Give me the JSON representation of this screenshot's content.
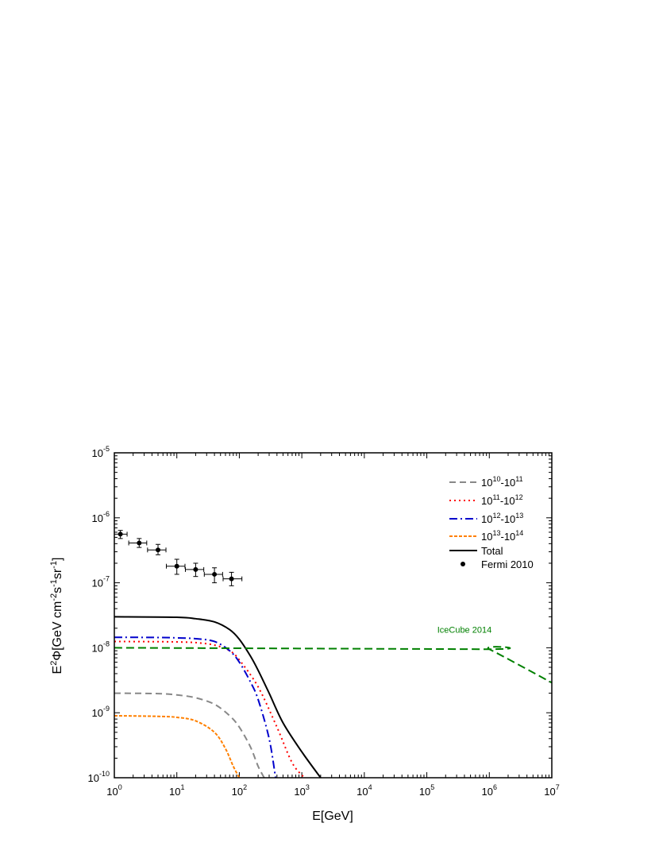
{
  "chart_data": {
    "type": "line",
    "x_scale": "log",
    "y_scale": "log",
    "xlim": [
      1,
      10000000
    ],
    "ylim": [
      1e-10,
      1e-05
    ],
    "xlabel": "E[GeV]",
    "ylabel": "E²Φ[GeV cm⁻²s⁻¹sr⁻¹]",
    "ylabel_parts": {
      "E": "E",
      "E_sup": "2",
      "phi": "Φ[GeV cm",
      "cm_sup": "-2",
      "s": "s",
      "s_sup": "-1",
      "sr": "sr",
      "sr_sup": "-1",
      "close": "]"
    },
    "x_ticks": [
      {
        "value": 1,
        "base": "10",
        "exp": "0"
      },
      {
        "value": 10,
        "base": "10",
        "exp": "1"
      },
      {
        "value": 100,
        "base": "10",
        "exp": "2"
      },
      {
        "value": 1000,
        "base": "10",
        "exp": "3"
      },
      {
        "value": 10000,
        "base": "10",
        "exp": "4"
      },
      {
        "value": 100000,
        "base": "10",
        "exp": "5"
      },
      {
        "value": 1000000,
        "base": "10",
        "exp": "6"
      },
      {
        "value": 10000000,
        "base": "10",
        "exp": "7"
      }
    ],
    "y_ticks": [
      {
        "value": 1e-10,
        "base": "10",
        "exp": "-10"
      },
      {
        "value": 1e-09,
        "base": "10",
        "exp": "-9"
      },
      {
        "value": 1e-08,
        "base": "10",
        "exp": "-8"
      },
      {
        "value": 1e-07,
        "base": "10",
        "exp": "-7"
      },
      {
        "value": 1e-06,
        "base": "10",
        "exp": "-6"
      },
      {
        "value": 1e-05,
        "base": "10",
        "exp": "-5"
      }
    ],
    "legend_position": "top-right",
    "series": [
      {
        "name": "10¹⁰-10¹¹",
        "label_parts": {
          "a": "10",
          "a_exp": "10",
          "sep": "-",
          "b": "10",
          "b_exp": "11"
        },
        "color": "#888888",
        "dash": "8,5",
        "width": 2,
        "points": [
          [
            1,
            2e-09
          ],
          [
            5,
            1.97e-09
          ],
          [
            10,
            1.88e-09
          ],
          [
            20,
            1.7e-09
          ],
          [
            40,
            1.35e-09
          ],
          [
            70,
            9e-10
          ],
          [
            100,
            6e-10
          ],
          [
            150,
            3e-10
          ],
          [
            200,
            1.5e-10
          ],
          [
            250,
            1e-10
          ]
        ]
      },
      {
        "name": "10¹¹-10¹²",
        "label_parts": {
          "a": "10",
          "a_exp": "11",
          "sep": "-",
          "b": "10",
          "b_exp": "12"
        },
        "color": "#ff0000",
        "dash": "2,4",
        "width": 2,
        "points": [
          [
            1,
            1.25e-08
          ],
          [
            5,
            1.24e-08
          ],
          [
            10,
            1.23e-08
          ],
          [
            20,
            1.2e-08
          ],
          [
            40,
            1.1e-08
          ],
          [
            70,
            9e-09
          ],
          [
            100,
            6.5e-09
          ],
          [
            200,
            2.5e-09
          ],
          [
            400,
            6e-10
          ],
          [
            700,
            1.7e-10
          ],
          [
            1100,
            1e-10
          ]
        ]
      },
      {
        "name": "10¹²-10¹³",
        "label_parts": {
          "a": "10",
          "a_exp": "12",
          "sep": "-",
          "b": "10",
          "b_exp": "13"
        },
        "color": "#0000cc",
        "dash": "10,4,2,4",
        "width": 2,
        "points": [
          [
            1,
            1.45e-08
          ],
          [
            5,
            1.44e-08
          ],
          [
            10,
            1.42e-08
          ],
          [
            20,
            1.38e-08
          ],
          [
            40,
            1.25e-08
          ],
          [
            70,
            9e-09
          ],
          [
            100,
            6e-09
          ],
          [
            150,
            3e-09
          ],
          [
            200,
            1.6e-09
          ],
          [
            300,
            4e-10
          ],
          [
            380,
            1e-10
          ]
        ]
      },
      {
        "name": "10¹³-10¹⁴",
        "label_parts": {
          "a": "10",
          "a_exp": "13",
          "sep": "-",
          "b": "10",
          "b_exp": "14"
        },
        "color": "#ff8000",
        "dash": "4,2",
        "width": 2,
        "points": [
          [
            1,
            9e-10
          ],
          [
            5,
            8.8e-10
          ],
          [
            10,
            8.5e-10
          ],
          [
            20,
            7.5e-10
          ],
          [
            40,
            5e-10
          ],
          [
            60,
            2.8e-10
          ],
          [
            80,
            1.5e-10
          ],
          [
            100,
            1e-10
          ]
        ]
      },
      {
        "name": "Total",
        "label_parts": {
          "text": "Total"
        },
        "color": "#000000",
        "dash": "",
        "width": 2,
        "points": [
          [
            1,
            3e-08
          ],
          [
            10,
            2.95e-08
          ],
          [
            20,
            2.8e-08
          ],
          [
            40,
            2.5e-08
          ],
          [
            70,
            1.9e-08
          ],
          [
            100,
            1.35e-08
          ],
          [
            150,
            7.5e-09
          ],
          [
            200,
            4.5e-09
          ],
          [
            300,
            2e-09
          ],
          [
            500,
            7e-10
          ],
          [
            1000,
            2.5e-10
          ],
          [
            2000,
            1e-10
          ]
        ]
      },
      {
        "name": "IceCube 2014",
        "label_parts": {
          "text": "IceCube 2014"
        },
        "color": "#008000",
        "dash": "10,5",
        "width": 2,
        "in_legend": false,
        "annotation": {
          "x": 400000,
          "y": 1.7e-08
        },
        "points": [
          [
            1,
            1e-08
          ],
          [
            800000,
            9.5e-09
          ],
          [
            1000000,
            9.5e-09
          ],
          [
            10000000,
            2.9e-09
          ]
        ]
      }
    ],
    "scatter": {
      "name": "Fermi 2010",
      "color": "#000000",
      "points": [
        {
          "x": 1.25,
          "y": 5.6e-07,
          "xlo": 1.0,
          "xhi": 1.6,
          "ylo": 4.8e-07,
          "yhi": 6.4e-07
        },
        {
          "x": 2.5,
          "y": 4.1e-07,
          "xlo": 1.7,
          "xhi": 3.3,
          "ylo": 3.5e-07,
          "yhi": 4.8e-07
        },
        {
          "x": 5.0,
          "y": 3.2e-07,
          "xlo": 3.4,
          "xhi": 6.7,
          "ylo": 2.7e-07,
          "yhi": 3.9e-07
        },
        {
          "x": 10.0,
          "y": 1.8e-07,
          "xlo": 6.8,
          "xhi": 13.5,
          "ylo": 1.35e-07,
          "yhi": 2.3e-07
        },
        {
          "x": 20.0,
          "y": 1.6e-07,
          "xlo": 13.7,
          "xhi": 27.0,
          "ylo": 1.25e-07,
          "yhi": 2e-07
        },
        {
          "x": 40.0,
          "y": 1.35e-07,
          "xlo": 27.5,
          "xhi": 54.0,
          "ylo": 1e-07,
          "yhi": 1.7e-07
        },
        {
          "x": 75.0,
          "y": 1.15e-07,
          "xlo": 55.0,
          "xhi": 110.0,
          "ylo": 9e-08,
          "yhi": 1.45e-07
        }
      ]
    }
  }
}
